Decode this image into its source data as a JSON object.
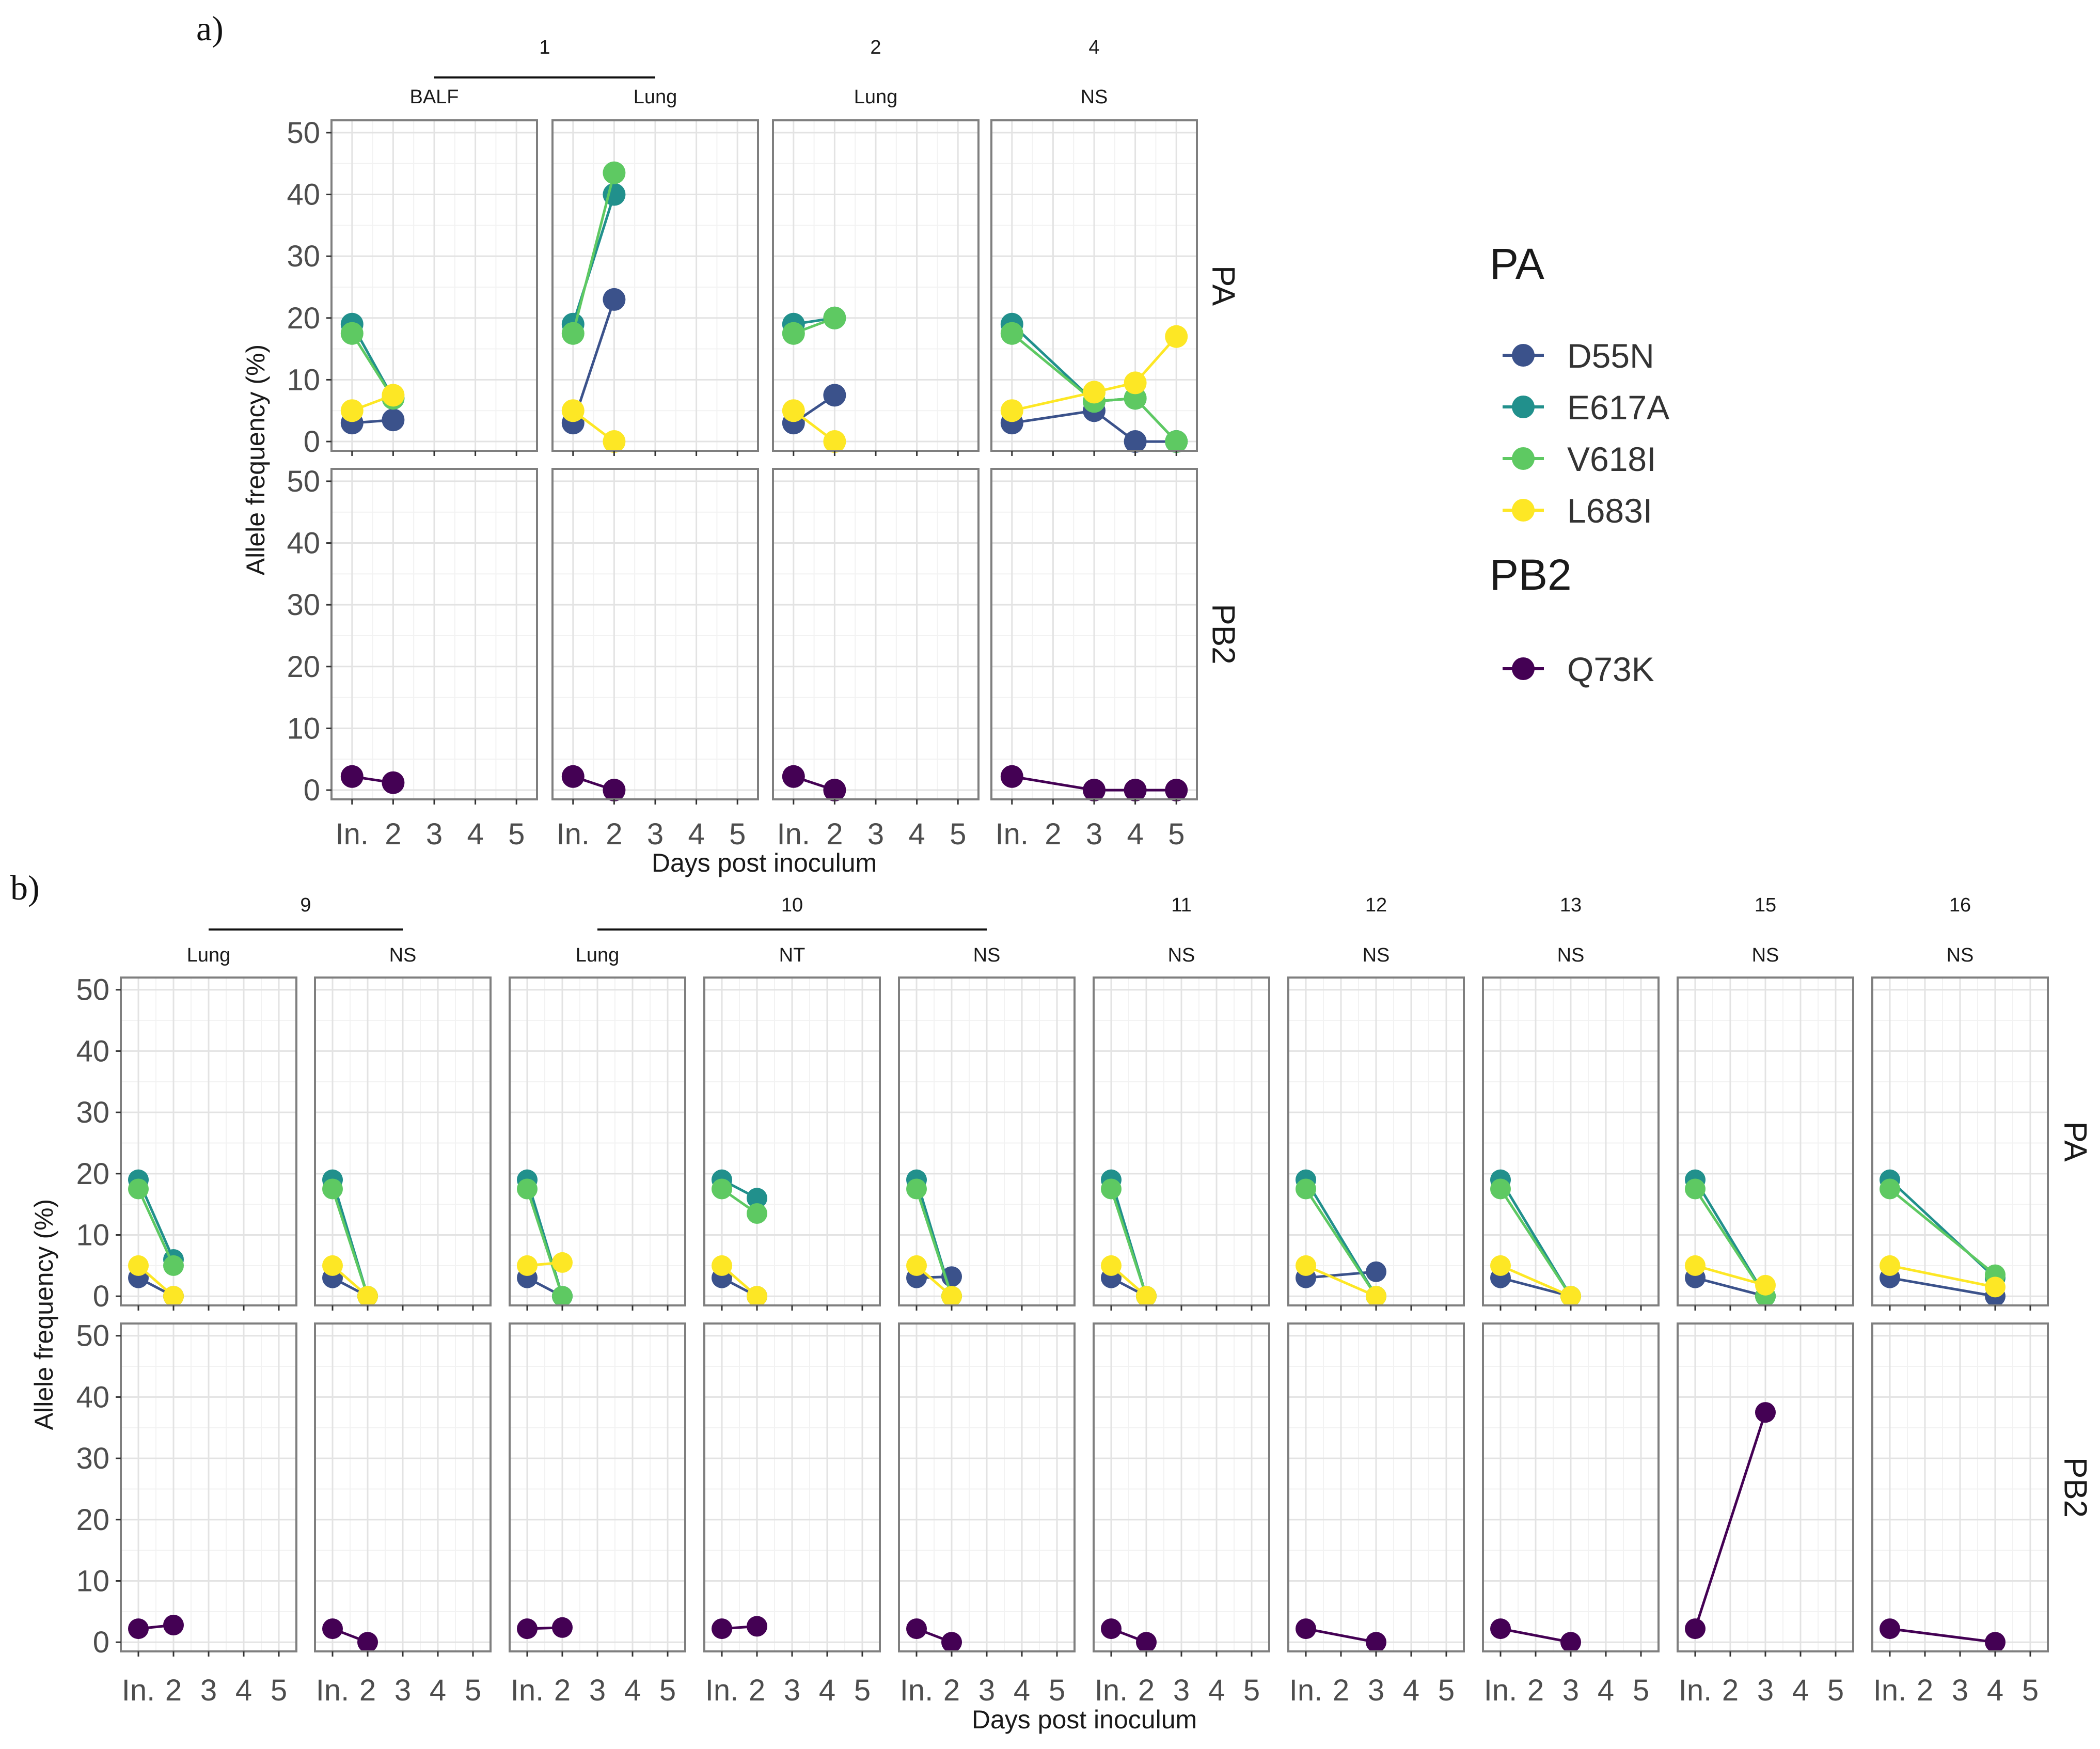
{
  "colors": {
    "D55N": "#3b528b",
    "E617A": "#21908c",
    "V618I": "#5ec962",
    "L683I": "#fde725",
    "Q73K": "#440154",
    "panel_border": "#7f7f7f",
    "grid_major": "#e3e3e3",
    "grid_minor": "#f2f2f2",
    "axis_text": "#4d4d4d"
  },
  "legend": {
    "groups": [
      {
        "title": "PA",
        "items": [
          "D55N",
          "E617A",
          "V618I",
          "L683I"
        ]
      },
      {
        "title": "PB2",
        "items": [
          "Q73K"
        ]
      }
    ]
  },
  "chart_data": [
    {
      "label": "a)",
      "type": "line",
      "xlabel": "Days post inoculum",
      "ylabel": "Allele frequency (%)",
      "x_tick_labels": [
        "In.",
        "2",
        "3",
        "4",
        "5"
      ],
      "y_ticks": [
        0,
        10,
        20,
        30,
        40,
        50
      ],
      "ylim": [
        -1.5,
        52
      ],
      "row_strips": [
        "PA",
        "PB2"
      ],
      "animal_headers": [
        {
          "animal": "1",
          "span": [
            0,
            1
          ]
        },
        {
          "animal": "2",
          "span": [
            2,
            2
          ]
        },
        {
          "animal": "4",
          "span": [
            3,
            3
          ]
        }
      ],
      "panels": [
        {
          "animal": "1",
          "tissue": "BALF",
          "PA": {
            "D55N": [
              [
                1,
                3
              ],
              [
                2,
                3.5
              ]
            ],
            "E617A": [
              [
                1,
                19
              ],
              [
                2,
                7
              ]
            ],
            "V618I": [
              [
                1,
                17.5
              ],
              [
                2,
                7
              ]
            ],
            "L683I": [
              [
                1,
                5
              ],
              [
                2,
                7.5
              ]
            ]
          },
          "PB2": {
            "Q73K": [
              [
                1,
                2.2
              ],
              [
                2,
                1.2
              ]
            ]
          }
        },
        {
          "animal": "1",
          "tissue": "Lung",
          "PA": {
            "D55N": [
              [
                1,
                3
              ],
              [
                2,
                23
              ]
            ],
            "E617A": [
              [
                1,
                19
              ],
              [
                2,
                40
              ]
            ],
            "V618I": [
              [
                1,
                17.5
              ],
              [
                2,
                43.5
              ]
            ],
            "L683I": [
              [
                1,
                5
              ],
              [
                2,
                0
              ]
            ]
          },
          "PB2": {
            "Q73K": [
              [
                1,
                2.2
              ],
              [
                2,
                0
              ]
            ]
          }
        },
        {
          "animal": "2",
          "tissue": "Lung",
          "PA": {
            "D55N": [
              [
                1,
                3
              ],
              [
                2,
                7.5
              ]
            ],
            "E617A": [
              [
                1,
                19
              ],
              [
                2,
                20
              ]
            ],
            "V618I": [
              [
                1,
                17.5
              ],
              [
                2,
                20
              ]
            ],
            "L683I": [
              [
                1,
                5
              ],
              [
                2,
                0
              ]
            ]
          },
          "PB2": {
            "Q73K": [
              [
                1,
                2.2
              ],
              [
                2,
                0
              ]
            ]
          }
        },
        {
          "animal": "4",
          "tissue": "NS",
          "PA": {
            "D55N": [
              [
                1,
                3
              ],
              [
                3,
                5
              ],
              [
                4,
                0
              ],
              [
                5,
                0
              ]
            ],
            "E617A": [
              [
                1,
                19
              ],
              [
                3,
                6.5
              ],
              [
                4,
                7
              ],
              [
                5,
                0
              ]
            ],
            "V618I": [
              [
                1,
                17.5
              ],
              [
                3,
                6.5
              ],
              [
                4,
                7
              ],
              [
                5,
                0
              ]
            ],
            "L683I": [
              [
                1,
                5
              ],
              [
                3,
                8
              ],
              [
                4,
                9.5
              ],
              [
                5,
                17
              ]
            ]
          },
          "PB2": {
            "Q73K": [
              [
                1,
                2.2
              ],
              [
                3,
                0
              ],
              [
                4,
                0
              ],
              [
                5,
                0
              ]
            ]
          }
        }
      ]
    },
    {
      "label": "b)",
      "type": "line",
      "xlabel": "Days post inoculum",
      "ylabel": "Allele frequency (%)",
      "x_tick_labels": [
        "In.",
        "2",
        "3",
        "4",
        "5"
      ],
      "y_ticks": [
        0,
        10,
        20,
        30,
        40,
        50
      ],
      "ylim": [
        -1.5,
        52
      ],
      "row_strips": [
        "PA",
        "PB2"
      ],
      "animal_headers": [
        {
          "animal": "9",
          "span": [
            0,
            1
          ]
        },
        {
          "animal": "10",
          "span": [
            2,
            4
          ]
        },
        {
          "animal": "11",
          "span": [
            5,
            5
          ]
        },
        {
          "animal": "12",
          "span": [
            6,
            6
          ]
        },
        {
          "animal": "13",
          "span": [
            7,
            7
          ]
        },
        {
          "animal": "15",
          "span": [
            8,
            8
          ]
        },
        {
          "animal": "16",
          "span": [
            9,
            9
          ]
        }
      ],
      "panels": [
        {
          "animal": "9",
          "tissue": "Lung",
          "PA": {
            "D55N": [
              [
                1,
                3
              ],
              [
                2,
                0
              ]
            ],
            "E617A": [
              [
                1,
                19
              ],
              [
                2,
                6
              ]
            ],
            "V618I": [
              [
                1,
                17.5
              ],
              [
                2,
                5
              ]
            ],
            "L683I": [
              [
                1,
                5
              ],
              [
                2,
                0
              ]
            ]
          },
          "PB2": {
            "Q73K": [
              [
                1,
                2.2
              ],
              [
                2,
                2.8
              ]
            ]
          }
        },
        {
          "animal": "9",
          "tissue": "NS",
          "PA": {
            "D55N": [
              [
                1,
                3
              ],
              [
                2,
                0
              ]
            ],
            "E617A": [
              [
                1,
                19
              ],
              [
                2,
                0
              ]
            ],
            "V618I": [
              [
                1,
                17.5
              ],
              [
                2,
                0
              ]
            ],
            "L683I": [
              [
                1,
                5
              ],
              [
                2,
                0
              ]
            ]
          },
          "PB2": {
            "Q73K": [
              [
                1,
                2.2
              ],
              [
                2,
                0
              ]
            ]
          }
        },
        {
          "animal": "10",
          "tissue": "Lung",
          "PA": {
            "D55N": [
              [
                1,
                3
              ],
              [
                2,
                0
              ]
            ],
            "E617A": [
              [
                1,
                19
              ],
              [
                2,
                0
              ]
            ],
            "V618I": [
              [
                1,
                17.5
              ],
              [
                2,
                0
              ]
            ],
            "L683I": [
              [
                1,
                5
              ],
              [
                2,
                5.5
              ]
            ]
          },
          "PB2": {
            "Q73K": [
              [
                1,
                2.2
              ],
              [
                2,
                2.4
              ]
            ]
          }
        },
        {
          "animal": "10",
          "tissue": "NT",
          "PA": {
            "D55N": [
              [
                1,
                3
              ],
              [
                2,
                0
              ]
            ],
            "E617A": [
              [
                1,
                19
              ],
              [
                2,
                16
              ]
            ],
            "V618I": [
              [
                1,
                17.5
              ],
              [
                2,
                13.5
              ]
            ],
            "L683I": [
              [
                1,
                5
              ],
              [
                2,
                0
              ]
            ]
          },
          "PB2": {
            "Q73K": [
              [
                1,
                2.2
              ],
              [
                2,
                2.6
              ]
            ]
          }
        },
        {
          "animal": "10",
          "tissue": "NS",
          "PA": {
            "D55N": [
              [
                1,
                3
              ],
              [
                2,
                3.2
              ]
            ],
            "E617A": [
              [
                1,
                19
              ],
              [
                2,
                0
              ]
            ],
            "V618I": [
              [
                1,
                17.5
              ],
              [
                2,
                0
              ]
            ],
            "L683I": [
              [
                1,
                5
              ],
              [
                2,
                0
              ]
            ]
          },
          "PB2": {
            "Q73K": [
              [
                1,
                2.2
              ],
              [
                2,
                0
              ]
            ]
          }
        },
        {
          "animal": "11",
          "tissue": "NS",
          "PA": {
            "D55N": [
              [
                1,
                3
              ],
              [
                2,
                0
              ]
            ],
            "E617A": [
              [
                1,
                19
              ],
              [
                2,
                0
              ]
            ],
            "V618I": [
              [
                1,
                17.5
              ],
              [
                2,
                0
              ]
            ],
            "L683I": [
              [
                1,
                5
              ],
              [
                2,
                0
              ]
            ]
          },
          "PB2": {
            "Q73K": [
              [
                1,
                2.2
              ],
              [
                2,
                0
              ]
            ]
          }
        },
        {
          "animal": "12",
          "tissue": "NS",
          "PA": {
            "D55N": [
              [
                1,
                3
              ],
              [
                3,
                4
              ]
            ],
            "E617A": [
              [
                1,
                19
              ],
              [
                3,
                0
              ]
            ],
            "V618I": [
              [
                1,
                17.5
              ],
              [
                3,
                0
              ]
            ],
            "L683I": [
              [
                1,
                5
              ],
              [
                3,
                0
              ]
            ]
          },
          "PB2": {
            "Q73K": [
              [
                1,
                2.2
              ],
              [
                3,
                0
              ]
            ]
          }
        },
        {
          "animal": "13",
          "tissue": "NS",
          "PA": {
            "D55N": [
              [
                1,
                3
              ],
              [
                3,
                0
              ]
            ],
            "E617A": [
              [
                1,
                19
              ],
              [
                3,
                0
              ]
            ],
            "V618I": [
              [
                1,
                17.5
              ],
              [
                3,
                0
              ]
            ],
            "L683I": [
              [
                1,
                5
              ],
              [
                3,
                0
              ]
            ]
          },
          "PB2": {
            "Q73K": [
              [
                1,
                2.2
              ],
              [
                3,
                0
              ]
            ]
          }
        },
        {
          "animal": "15",
          "tissue": "NS",
          "PA": {
            "D55N": [
              [
                1,
                3
              ],
              [
                3,
                0
              ]
            ],
            "E617A": [
              [
                1,
                19
              ],
              [
                3,
                0
              ]
            ],
            "V618I": [
              [
                1,
                17.5
              ],
              [
                3,
                0
              ]
            ],
            "L683I": [
              [
                1,
                5
              ],
              [
                3,
                1.8
              ]
            ]
          },
          "PB2": {
            "Q73K": [
              [
                1,
                2.2
              ],
              [
                3,
                37.5
              ]
            ]
          }
        },
        {
          "animal": "16",
          "tissue": "NS",
          "PA": {
            "D55N": [
              [
                1,
                3
              ],
              [
                4,
                0
              ]
            ],
            "E617A": [
              [
                1,
                19
              ],
              [
                4,
                3
              ]
            ],
            "V618I": [
              [
                1,
                17.5
              ],
              [
                4,
                3.5
              ]
            ],
            "L683I": [
              [
                1,
                5
              ],
              [
                4,
                1.5
              ]
            ]
          },
          "PB2": {
            "Q73K": [
              [
                1,
                2.2
              ],
              [
                4,
                0
              ]
            ]
          }
        }
      ]
    }
  ]
}
